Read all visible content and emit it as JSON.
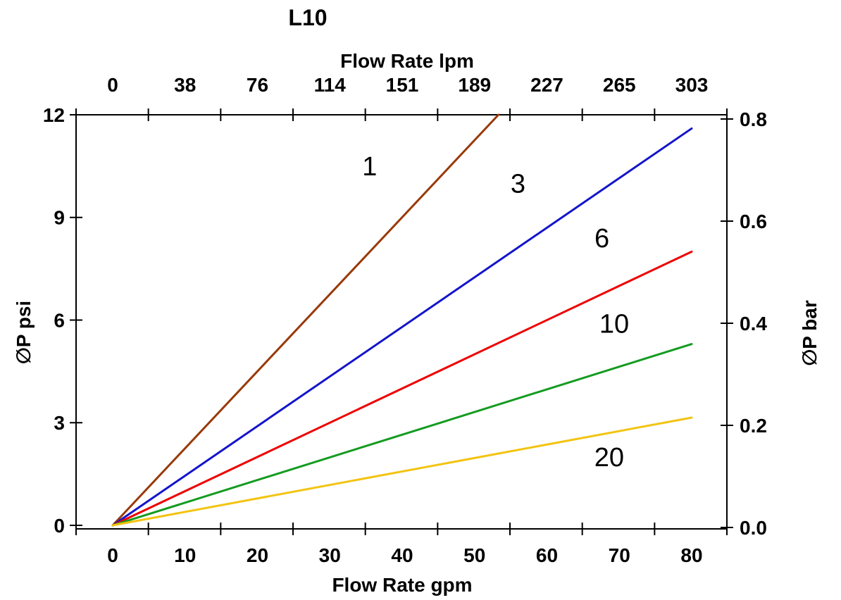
{
  "title": "L10",
  "chart_data": {
    "type": "line",
    "title": "L10",
    "xlabel_top": "Flow Rate lpm",
    "xlabel_bottom": "Flow Rate gpm",
    "ylabel_left": "∅P psi",
    "ylabel_right": "∅P bar",
    "x_gpm_ticks": [
      0,
      10,
      20,
      30,
      40,
      50,
      60,
      70,
      80
    ],
    "x_lpm_ticks": [
      0,
      38,
      76,
      114,
      151,
      189,
      227,
      265,
      303
    ],
    "y_psi_ticks": [
      0,
      3,
      6,
      9,
      12
    ],
    "y_bar_ticks": [
      "0.0",
      "0.2",
      "0.4",
      "0.6",
      "0.8"
    ],
    "xlim_gpm": [
      -5,
      85
    ],
    "ylim_psi": [
      0,
      12
    ],
    "ylim_bar": [
      0.0,
      0.81
    ],
    "grid": false,
    "legend": "inline curve labels (micron ratings)",
    "series": [
      {
        "name": "1",
        "color": "#993908",
        "points": [
          [
            0,
            0
          ],
          [
            53.3,
            12.0
          ]
        ],
        "label_at": {
          "x": 35.5,
          "y": 10.5
        }
      },
      {
        "name": "3",
        "color": "#1414cc",
        "points": [
          [
            0,
            0
          ],
          [
            80,
            11.6
          ]
        ],
        "label_at": {
          "x": 56.0,
          "y": 10.0
        }
      },
      {
        "name": "6",
        "color": "#ee0000",
        "points": [
          [
            0,
            0
          ],
          [
            80,
            8.0
          ]
        ],
        "label_at": {
          "x": 67.6,
          "y": 8.4
        }
      },
      {
        "name": "10",
        "color": "#149b20",
        "points": [
          [
            0,
            0
          ],
          [
            80,
            5.3
          ]
        ],
        "label_at": {
          "x": 69.3,
          "y": 5.9
        }
      },
      {
        "name": "20",
        "color": "#f2c411",
        "points": [
          [
            0,
            0
          ],
          [
            80,
            3.15
          ]
        ],
        "label_at": {
          "x": 68.6,
          "y": 2.0
        }
      }
    ],
    "axis_color": "#000000"
  }
}
